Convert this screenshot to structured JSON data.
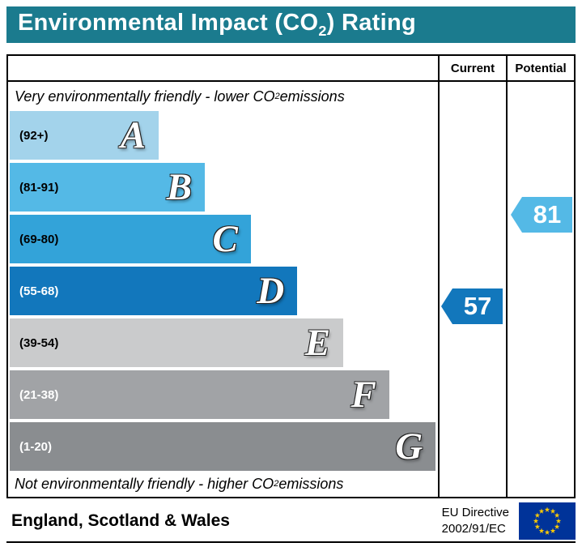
{
  "header": {
    "title_prefix": "Environmental Impact (CO",
    "title_sub": "2",
    "title_suffix": ") Rating",
    "bg_color": "#1b7b8e"
  },
  "columns": {
    "current": "Current",
    "potential": "Potential"
  },
  "notes": {
    "top_prefix": "Very environmentally friendly - lower CO",
    "top_sub": "2",
    "top_suffix": " emissions",
    "bottom_prefix": "Not environmentally friendly - higher CO",
    "bottom_sub": "2",
    "bottom_suffix": " emissions"
  },
  "bands": [
    {
      "letter": "A",
      "range": "(92+)",
      "color": "#a3d3eb",
      "width_pct": 34.7,
      "label_color": "#000000"
    },
    {
      "letter": "B",
      "range": "(81-91)",
      "color": "#54b9e6",
      "width_pct": 45.4,
      "label_color": "#000000"
    },
    {
      "letter": "C",
      "range": "(69-80)",
      "color": "#33a3d9",
      "width_pct": 56.1,
      "label_color": "#000000"
    },
    {
      "letter": "D",
      "range": "(55-68)",
      "color": "#1277bc",
      "width_pct": 66.9,
      "label_color": "#ffffff"
    },
    {
      "letter": "E",
      "range": "(39-54)",
      "color": "#cacbcc",
      "width_pct": 77.6,
      "label_color": "#000000"
    },
    {
      "letter": "F",
      "range": "(21-38)",
      "color": "#a1a3a6",
      "width_pct": 88.3,
      "label_color": "#ffffff"
    },
    {
      "letter": "G",
      "range": "(1-20)",
      "color": "#8a8d90",
      "width_pct": 99.1,
      "label_color": "#ffffff"
    }
  ],
  "ratings": {
    "current": {
      "value": "57",
      "band": "D",
      "color": "#1277bc"
    },
    "potential": {
      "value": "81",
      "band": "B",
      "color": "#54b9e6"
    }
  },
  "footer": {
    "region": "England, Scotland & Wales",
    "directive_line1": "EU Directive",
    "directive_line2": "2002/91/EC",
    "flag": {
      "background": "#003399",
      "stars": "#ffcc00"
    }
  },
  "chart_data": {
    "type": "bar",
    "title": "Environmental Impact (CO2) Rating",
    "categories": [
      "A (92+)",
      "B (81-91)",
      "C (69-80)",
      "D (55-68)",
      "E (39-54)",
      "F (21-38)",
      "G (1-20)"
    ],
    "values": [
      34.7,
      45.4,
      56.1,
      66.9,
      77.6,
      88.3,
      99.1
    ],
    "current_rating": 57,
    "current_band": "D",
    "potential_rating": 81,
    "potential_band": "B",
    "top_note": "Very environmentally friendly - lower CO2 emissions",
    "bottom_note": "Not environmentally friendly - higher CO2 emissions",
    "region": "England, Scotland & Wales",
    "directive": "EU Directive 2002/91/EC"
  }
}
